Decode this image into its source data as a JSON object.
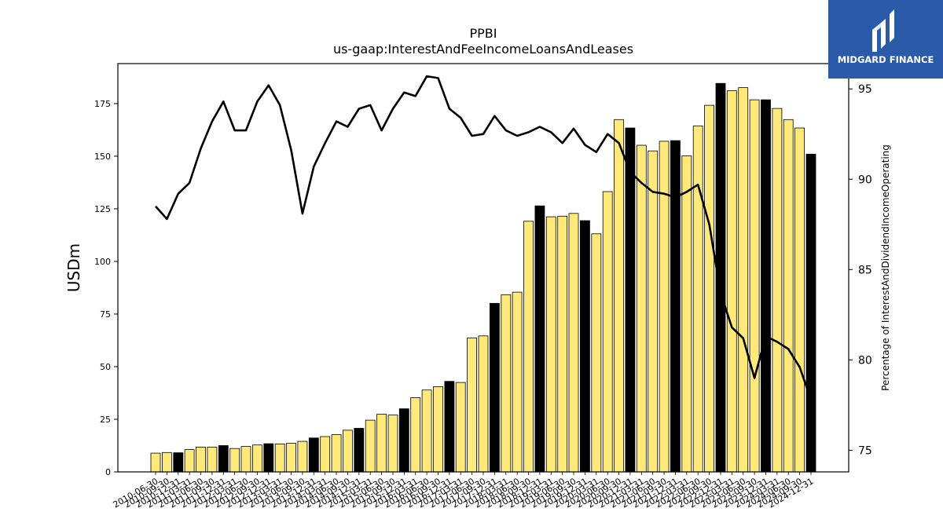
{
  "brand": {
    "name": "MIDGARD FINANCE",
    "logo_icon": "midgard-logo-icon",
    "background": "#2a5aa8"
  },
  "chart_data": {
    "type": "bar",
    "title": "PPBI",
    "subtitle": "us-gaap:InterestAndFeeIncomeLoansAndLeases",
    "ylabel": "USDm",
    "y2label": "Percentage of InterestAndDividendIncomeOperating",
    "ylim": [
      0,
      194
    ],
    "y2lim": [
      73.8,
      96.4
    ],
    "yticks": [
      0,
      25,
      50,
      75,
      100,
      125,
      150,
      175
    ],
    "y2ticks": [
      75,
      80,
      85,
      90,
      95
    ],
    "colors": {
      "quarter_bar": "#ffe97a",
      "year_end_bar": "#000000",
      "line": "#000000"
    },
    "categories": [
      "2010-06-30",
      "2010-09-30",
      "2010-12-31",
      "2011-03-31",
      "2011-06-30",
      "2011-09-30",
      "2011-12-31",
      "2012-03-31",
      "2012-06-30",
      "2012-09-30",
      "2012-12-31",
      "2013-03-31",
      "2013-06-30",
      "2013-09-30",
      "2013-12-31",
      "2014-03-31",
      "2014-06-30",
      "2014-09-30",
      "2014-12-31",
      "2015-03-31",
      "2015-06-30",
      "2015-09-30",
      "2015-12-31",
      "2016-03-31",
      "2016-06-30",
      "2016-09-30",
      "2016-12-31",
      "2017-03-31",
      "2017-06-30",
      "2017-09-30",
      "2017-12-31",
      "2018-03-31",
      "2018-06-30",
      "2018-09-30",
      "2018-12-31",
      "2019-03-31",
      "2019-06-30",
      "2019-09-30",
      "2019-12-31",
      "2020-03-31",
      "2020-06-30",
      "2020-09-30",
      "2020-12-31",
      "2021-03-31",
      "2021-06-30",
      "2021-09-30",
      "2021-12-31",
      "2022-03-31",
      "2022-06-30",
      "2022-09-30",
      "2022-12-31",
      "2023-03-31",
      "2023-06-30",
      "2023-09-30",
      "2023-12-31",
      "2024-03-31",
      "2024-06-30",
      "2024-09-30",
      "2024-12-31"
    ],
    "tick_labels": [
      "2010-06-30",
      "2010-09-30",
      "2010-12-31",
      "2011-03-31",
      "2011-06-30",
      "2011-09-30",
      "2011-12-31",
      "2012-03-31",
      "2012-06-30",
      "2012-09-30",
      "2012-12-31",
      "2013-03-31",
      "2013-06-30",
      "2013-09-30",
      "2013-12-31",
      "2014-03-31",
      "2014-06-30",
      "2014-09-30",
      "2014-12-31",
      "2015-03-31",
      "2015-06-30",
      "2015-09-30",
      "2015-12-31",
      "2016-03-31",
      "2016-06-30",
      "2016-09-30",
      "2016-12-31",
      "2017-03-31",
      "2017-06-30",
      "2017-09-30",
      "2017-12-31",
      "2018-03-31",
      "2018-06-30",
      "2018-09-30",
      "2018-12-31",
      "2019-03-31",
      "2019-06-30",
      "2019-09-30",
      "2019-12-31",
      "2020-03-31",
      "2020-06-30",
      "2020-09-30",
      "2020-12-31",
      "2021-03-31",
      "2021-06-30",
      "2021-09-30",
      "2021-12-31",
      "2022-03-31",
      "2022-06-30",
      "2022-09-30",
      "2022-12-31",
      "2023-03-31",
      "2023-06-30",
      "2023-09-30",
      "2023-12-31",
      "2024-03-31",
      "2024-06-30",
      "2024-09-30",
      "2024-12-31"
    ],
    "series": [
      {
        "axis": "left",
        "kind": "bar",
        "values": [
          8.9,
          9.2,
          9.1,
          10.6,
          11.8,
          11.8,
          12.5,
          11.1,
          12.1,
          12.8,
          13.4,
          13.3,
          13.6,
          14.5,
          16.1,
          16.8,
          17.7,
          19.8,
          20.7,
          24.6,
          27.4,
          27.0,
          30.0,
          35.3,
          38.9,
          40.5,
          43.0,
          42.5,
          63.7,
          64.6,
          80.1,
          84.2,
          85.4,
          119.1,
          126.4,
          121.2,
          121.5,
          122.8,
          119.4,
          113.1,
          133.2,
          167.4,
          163.4,
          155.2,
          152.5,
          157.1,
          157.4,
          150.2,
          164.4,
          174.2,
          184.6,
          181.1,
          182.6,
          176.8,
          176.8,
          172.7,
          167.4,
          163.4,
          151.0
        ]
      },
      {
        "axis": "right",
        "kind": "line",
        "values": [
          88.5,
          87.8,
          89.2,
          89.8,
          91.7,
          93.2,
          94.3,
          92.7,
          92.7,
          94.3,
          95.2,
          94.1,
          91.6,
          88.1,
          90.7,
          92.0,
          93.2,
          92.9,
          93.9,
          94.1,
          92.7,
          93.9,
          94.8,
          94.6,
          95.7,
          95.6,
          93.9,
          93.4,
          92.4,
          92.5,
          93.5,
          92.7,
          92.4,
          92.6,
          92.9,
          92.6,
          92.0,
          92.8,
          91.9,
          91.5,
          92.5,
          92.0,
          90.4,
          89.8,
          89.3,
          89.2,
          89.0,
          89.3,
          89.7,
          87.5,
          83.7,
          81.8,
          81.2,
          79.0,
          81.3,
          81.0,
          80.6,
          79.6,
          77.8
        ]
      }
    ],
    "grid": false,
    "legend": "none"
  }
}
